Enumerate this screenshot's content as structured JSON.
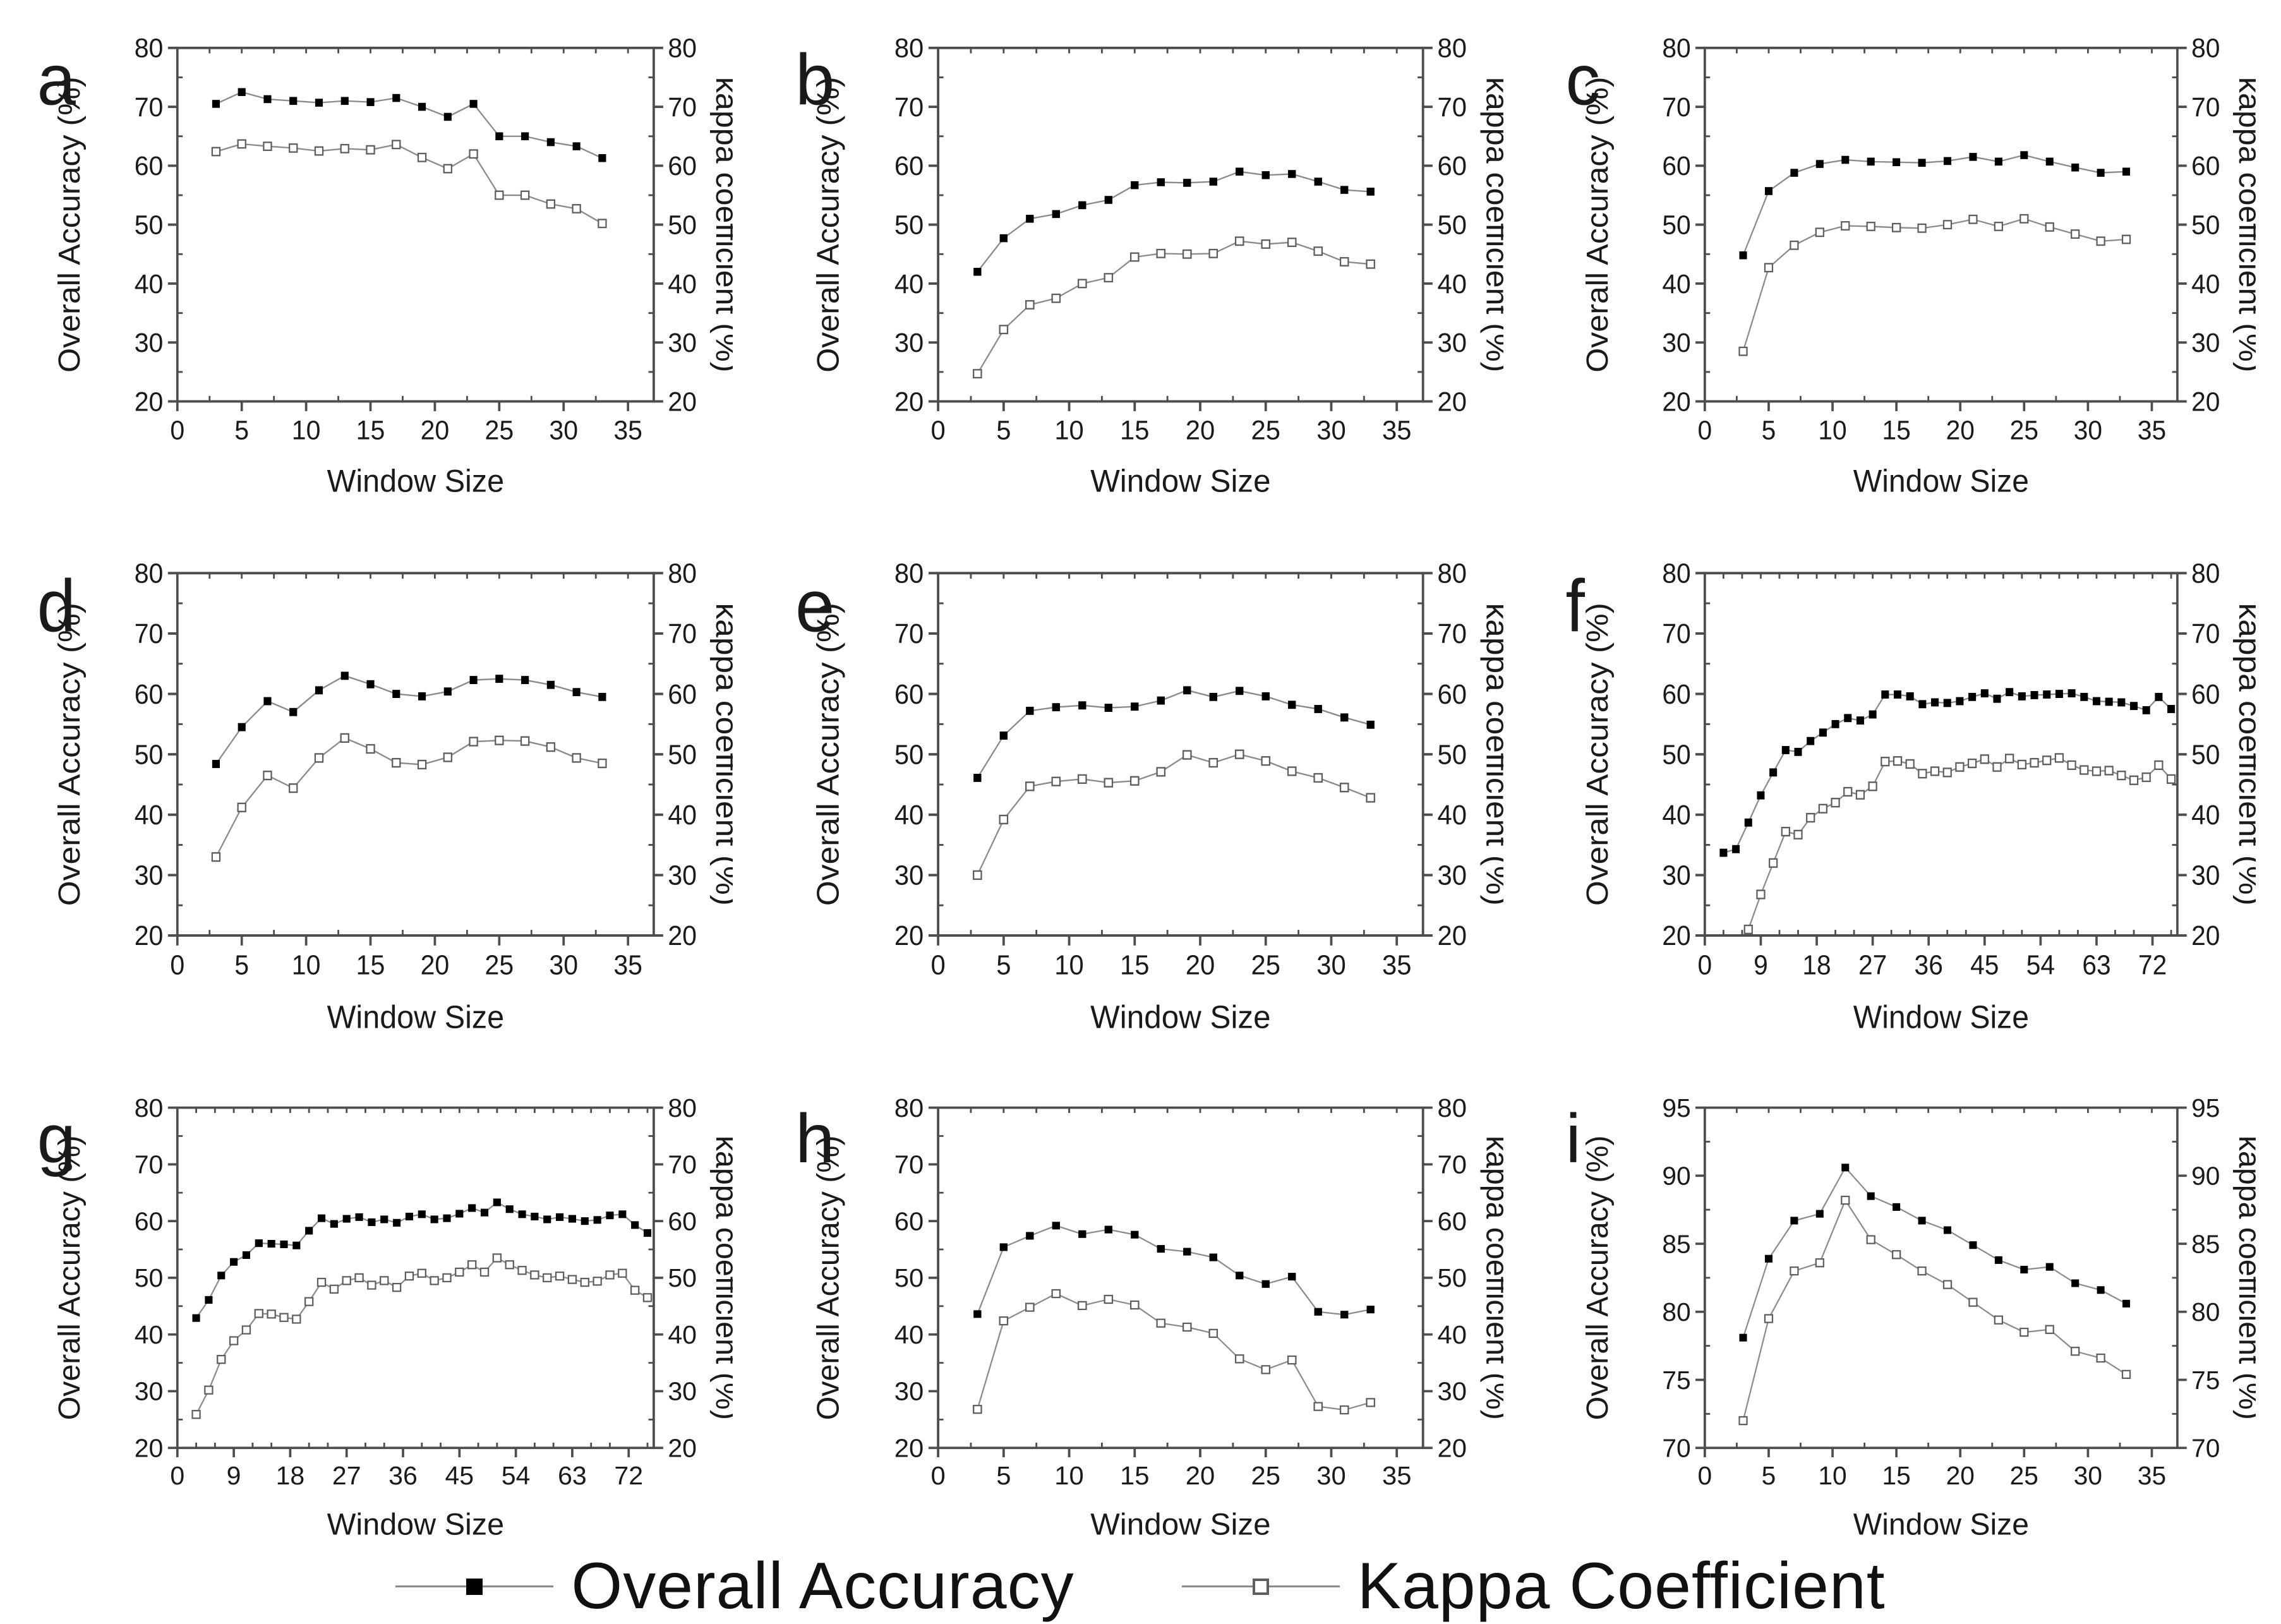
{
  "legend": {
    "items": [
      {
        "label": "Overall Accuracy",
        "marker": "filled-square"
      },
      {
        "label": "Kappa Coefficient",
        "marker": "open-square"
      }
    ]
  },
  "colors": {
    "axis": "#4d4d4d",
    "text": "#1a1a1a",
    "line": "#8a8a8a",
    "marker_filled": "#000000",
    "marker_open_fill": "#ffffff",
    "marker_open_stroke": "#5e5e5e"
  },
  "chart_data": [
    {
      "panel": "a",
      "type": "line",
      "xlabel": "Window Size",
      "ylabel_left": "Overall Accuracy (%)",
      "ylabel_right": "kappa coefficient (%)",
      "xlim": [
        0,
        37
      ],
      "ylim": [
        20,
        80
      ],
      "xticks": [
        0,
        5,
        10,
        15,
        20,
        25,
        30,
        35
      ],
      "yticks": [
        20,
        30,
        40,
        50,
        60,
        70,
        80
      ],
      "x_minor_step": 2.5,
      "y_minor_step": 5,
      "x": [
        3,
        5,
        7,
        9,
        11,
        13,
        15,
        17,
        19,
        21,
        23,
        25,
        27,
        29,
        31,
        33
      ],
      "series": [
        {
          "name": "Overall Accuracy",
          "values": [
            70.5,
            72.5,
            71.3,
            71.0,
            70.7,
            71.0,
            70.8,
            71.5,
            70.0,
            68.3,
            70.5,
            65.0,
            65.0,
            64.0,
            63.3,
            61.3
          ]
        },
        {
          "name": "Kappa Coefficient",
          "values": [
            62.4,
            63.7,
            63.3,
            63.0,
            62.5,
            62.9,
            62.7,
            63.6,
            61.4,
            59.5,
            62.0,
            55.0,
            55.0,
            53.5,
            52.7,
            50.2
          ]
        }
      ]
    },
    {
      "panel": "b",
      "type": "line",
      "xlabel": "Window Size",
      "ylabel_left": "Overall Accuracy (%)",
      "ylabel_right": "kappa coefficient (%)",
      "xlim": [
        0,
        37
      ],
      "ylim": [
        20,
        80
      ],
      "xticks": [
        0,
        5,
        10,
        15,
        20,
        25,
        30,
        35
      ],
      "yticks": [
        20,
        30,
        40,
        50,
        60,
        70,
        80
      ],
      "x_minor_step": 2.5,
      "y_minor_step": 5,
      "x": [
        3,
        5,
        7,
        9,
        11,
        13,
        15,
        17,
        19,
        21,
        23,
        25,
        27,
        29,
        31,
        33
      ],
      "series": [
        {
          "name": "Overall Accuracy",
          "values": [
            42.0,
            47.7,
            51.0,
            51.8,
            53.3,
            54.2,
            56.7,
            57.2,
            57.1,
            57.3,
            59.0,
            58.4,
            58.6,
            57.3,
            55.9,
            55.6
          ]
        },
        {
          "name": "Kappa Coefficient",
          "values": [
            24.7,
            32.2,
            36.4,
            37.5,
            40.0,
            41.0,
            44.5,
            45.1,
            45.0,
            45.1,
            47.2,
            46.7,
            47.0,
            45.5,
            43.7,
            43.3
          ]
        }
      ]
    },
    {
      "panel": "c",
      "type": "line",
      "xlabel": "Window Size",
      "ylabel_left": "Overall Accuracy (%)",
      "ylabel_right": "kappa coefficient (%)",
      "xlim": [
        0,
        37
      ],
      "ylim": [
        20,
        80
      ],
      "xticks": [
        0,
        5,
        10,
        15,
        20,
        25,
        30,
        35
      ],
      "yticks": [
        20,
        30,
        40,
        50,
        60,
        70,
        80
      ],
      "x_minor_step": 2.5,
      "y_minor_step": 5,
      "x": [
        3,
        5,
        7,
        9,
        11,
        13,
        15,
        17,
        19,
        21,
        23,
        25,
        27,
        29,
        31,
        33
      ],
      "series": [
        {
          "name": "Overall Accuracy",
          "values": [
            44.8,
            55.7,
            58.8,
            60.3,
            61.0,
            60.7,
            60.6,
            60.5,
            60.8,
            61.5,
            60.7,
            61.8,
            60.7,
            59.7,
            58.8,
            59.0
          ]
        },
        {
          "name": "Kappa Coefficient",
          "values": [
            28.5,
            42.7,
            46.5,
            48.7,
            49.8,
            49.7,
            49.5,
            49.4,
            50.0,
            50.9,
            49.7,
            51.0,
            49.6,
            48.4,
            47.2,
            47.5
          ]
        }
      ]
    },
    {
      "panel": "d",
      "type": "line",
      "xlabel": "Window Size",
      "ylabel_left": "Overall Accuracy (%)",
      "ylabel_right": "kappa coefficient (%)",
      "xlim": [
        0,
        37
      ],
      "ylim": [
        20,
        80
      ],
      "xticks": [
        0,
        5,
        10,
        15,
        20,
        25,
        30,
        35
      ],
      "yticks": [
        20,
        30,
        40,
        50,
        60,
        70,
        80
      ],
      "x_minor_step": 2.5,
      "y_minor_step": 5,
      "x": [
        3,
        5,
        7,
        9,
        11,
        13,
        15,
        17,
        19,
        21,
        23,
        25,
        27,
        29,
        31,
        33
      ],
      "series": [
        {
          "name": "Overall Accuracy",
          "values": [
            48.4,
            54.5,
            58.8,
            57.0,
            60.6,
            63.0,
            61.6,
            60.0,
            59.6,
            60.4,
            62.3,
            62.5,
            62.3,
            61.5,
            60.3,
            59.5
          ]
        },
        {
          "name": "Kappa Coefficient",
          "values": [
            33.0,
            41.2,
            46.5,
            44.4,
            49.4,
            52.7,
            50.9,
            48.6,
            48.3,
            49.5,
            52.1,
            52.3,
            52.2,
            51.2,
            49.4,
            48.5
          ]
        }
      ]
    },
    {
      "panel": "e",
      "type": "line",
      "xlabel": "Window Size",
      "ylabel_left": "Overall Accuracy (%)",
      "ylabel_right": "kappa coefficient (%)",
      "xlim": [
        0,
        37
      ],
      "ylim": [
        20,
        80
      ],
      "xticks": [
        0,
        5,
        10,
        15,
        20,
        25,
        30,
        35
      ],
      "yticks": [
        20,
        30,
        40,
        50,
        60,
        70,
        80
      ],
      "x_minor_step": 2.5,
      "y_minor_step": 5,
      "x": [
        3,
        5,
        7,
        9,
        11,
        13,
        15,
        17,
        19,
        21,
        23,
        25,
        27,
        29,
        31,
        33
      ],
      "series": [
        {
          "name": "Overall Accuracy",
          "values": [
            46.1,
            53.1,
            57.2,
            57.8,
            58.1,
            57.7,
            57.9,
            58.9,
            60.6,
            59.5,
            60.5,
            59.6,
            58.2,
            57.5,
            56.1,
            54.9
          ]
        },
        {
          "name": "Kappa Coefficient",
          "values": [
            30.0,
            39.2,
            44.7,
            45.5,
            45.9,
            45.3,
            45.6,
            47.1,
            49.9,
            48.6,
            50.0,
            48.9,
            47.2,
            46.1,
            44.5,
            42.8
          ]
        }
      ]
    },
    {
      "panel": "f",
      "type": "line",
      "xlabel": "Window Size",
      "ylabel_left": "Overall Accuracy (%)",
      "ylabel_right": "kappa coefficient (%)",
      "xlim": [
        0,
        76
      ],
      "ylim": [
        20,
        80
      ],
      "xticks": [
        0,
        9,
        18,
        27,
        36,
        45,
        54,
        63,
        72
      ],
      "yticks": [
        20,
        30,
        40,
        50,
        60,
        70,
        80
      ],
      "x_minor_step": 3,
      "y_minor_step": 5,
      "x": [
        3,
        5,
        7,
        9,
        11,
        13,
        15,
        17,
        19,
        21,
        23,
        25,
        27,
        29,
        31,
        33,
        35,
        37,
        39,
        41,
        43,
        45,
        47,
        49,
        51,
        53,
        55,
        57,
        59,
        61,
        63,
        65,
        67,
        69,
        71,
        73,
        75
      ],
      "series": [
        {
          "name": "Overall Accuracy",
          "values": [
            33.7,
            34.3,
            38.7,
            43.2,
            47.0,
            50.7,
            50.4,
            52.2,
            53.6,
            55.0,
            56.0,
            55.6,
            56.6,
            59.9,
            59.9,
            59.6,
            58.3,
            58.6,
            58.5,
            58.8,
            59.5,
            60.1,
            59.2,
            60.3,
            59.6,
            59.8,
            59.9,
            60.0,
            60.1,
            59.5,
            58.8,
            58.7,
            58.6,
            58.0,
            57.3,
            59.5,
            57.5
          ]
        },
        {
          "name": "Kappa Coefficient",
          "values": [
            null,
            null,
            21.0,
            26.8,
            32.0,
            37.2,
            36.7,
            39.5,
            41.0,
            42.0,
            43.8,
            43.3,
            44.7,
            48.8,
            48.9,
            48.4,
            46.8,
            47.2,
            47.0,
            47.9,
            48.5,
            49.2,
            47.9,
            49.3,
            48.3,
            48.6,
            49.0,
            49.4,
            48.2,
            47.4,
            47.2,
            47.3,
            46.5,
            45.7,
            46.2,
            48.2,
            45.9
          ]
        }
      ]
    },
    {
      "panel": "g",
      "type": "line",
      "xlabel": "Window Size",
      "ylabel_left": "Overall Accuracy (%)",
      "ylabel_right": "kappa coefficient (%)",
      "xlim": [
        0,
        76
      ],
      "ylim": [
        20,
        80
      ],
      "xticks": [
        0,
        9,
        18,
        27,
        36,
        45,
        54,
        63,
        72
      ],
      "yticks": [
        20,
        30,
        40,
        50,
        60,
        70,
        80
      ],
      "x_minor_step": 3,
      "y_minor_step": 5,
      "x": [
        3,
        5,
        7,
        9,
        11,
        13,
        15,
        17,
        19,
        21,
        23,
        25,
        27,
        29,
        31,
        33,
        35,
        37,
        39,
        41,
        43,
        45,
        47,
        49,
        51,
        53,
        55,
        57,
        59,
        61,
        63,
        65,
        67,
        69,
        71,
        73,
        75
      ],
      "series": [
        {
          "name": "Overall Accuracy",
          "values": [
            42.9,
            46.1,
            50.4,
            52.8,
            54.0,
            56.1,
            56.0,
            55.9,
            55.7,
            58.3,
            60.5,
            59.5,
            60.4,
            60.7,
            59.8,
            60.3,
            59.7,
            60.8,
            61.2,
            60.3,
            60.5,
            61.3,
            62.3,
            61.5,
            63.3,
            62.1,
            61.2,
            60.8,
            60.3,
            60.7,
            60.4,
            60.0,
            60.2,
            61.0,
            61.2,
            59.3,
            57.9
          ]
        },
        {
          "name": "Kappa Coefficient",
          "values": [
            25.9,
            30.2,
            35.6,
            38.9,
            40.8,
            43.7,
            43.6,
            43.0,
            42.7,
            45.8,
            49.2,
            48.0,
            49.5,
            50.0,
            48.7,
            49.5,
            48.3,
            50.3,
            50.8,
            49.5,
            50.0,
            51.0,
            52.3,
            51.0,
            53.5,
            52.3,
            51.3,
            50.5,
            50.0,
            50.3,
            49.7,
            49.2,
            49.4,
            50.5,
            50.8,
            47.8,
            46.5
          ]
        }
      ]
    },
    {
      "panel": "h",
      "type": "line",
      "xlabel": "Window Size",
      "ylabel_left": "Overall Accuracy (%)",
      "ylabel_right": "kappa coefficient (%)",
      "xlim": [
        0,
        37
      ],
      "ylim": [
        20,
        80
      ],
      "xticks": [
        0,
        5,
        10,
        15,
        20,
        25,
        30,
        35
      ],
      "yticks": [
        20,
        30,
        40,
        50,
        60,
        70,
        80
      ],
      "x_minor_step": 2.5,
      "y_minor_step": 5,
      "x": [
        3,
        5,
        7,
        9,
        11,
        13,
        15,
        17,
        19,
        21,
        23,
        25,
        27,
        29,
        31,
        33
      ],
      "series": [
        {
          "name": "Overall Accuracy",
          "values": [
            43.6,
            55.4,
            57.4,
            59.2,
            57.7,
            58.5,
            57.6,
            55.1,
            54.6,
            53.6,
            50.4,
            48.9,
            50.2,
            44.0,
            43.5,
            44.4
          ]
        },
        {
          "name": "Kappa Coefficient",
          "values": [
            26.8,
            42.4,
            44.8,
            47.2,
            45.1,
            46.2,
            45.2,
            42.0,
            41.3,
            40.2,
            35.7,
            33.8,
            35.5,
            27.3,
            26.7,
            28.0
          ]
        }
      ]
    },
    {
      "panel": "i",
      "type": "line",
      "xlabel": "Window Size",
      "ylabel_left": "Overall Accuracy (%)",
      "ylabel_right": "kappa coefficient (%)",
      "xlim": [
        0,
        37
      ],
      "ylim": [
        70,
        95
      ],
      "xticks": [
        0,
        5,
        10,
        15,
        20,
        25,
        30,
        35
      ],
      "yticks": [
        70,
        75,
        80,
        85,
        90,
        95
      ],
      "x_minor_step": 2.5,
      "y_minor_step": 2.5,
      "x": [
        3,
        5,
        7,
        9,
        11,
        13,
        15,
        17,
        19,
        21,
        23,
        25,
        27,
        29,
        31,
        33
      ],
      "series": [
        {
          "name": "Overall Accuracy",
          "values": [
            78.1,
            83.9,
            86.7,
            87.2,
            90.6,
            88.5,
            87.7,
            86.7,
            86.0,
            84.9,
            83.8,
            83.1,
            83.3,
            82.1,
            81.6,
            80.6
          ]
        },
        {
          "name": "Kappa Coefficient",
          "values": [
            72.0,
            79.5,
            83.0,
            83.6,
            88.2,
            85.3,
            84.2,
            83.0,
            82.0,
            80.7,
            79.4,
            78.5,
            78.7,
            77.1,
            76.6,
            75.4
          ]
        }
      ]
    }
  ]
}
